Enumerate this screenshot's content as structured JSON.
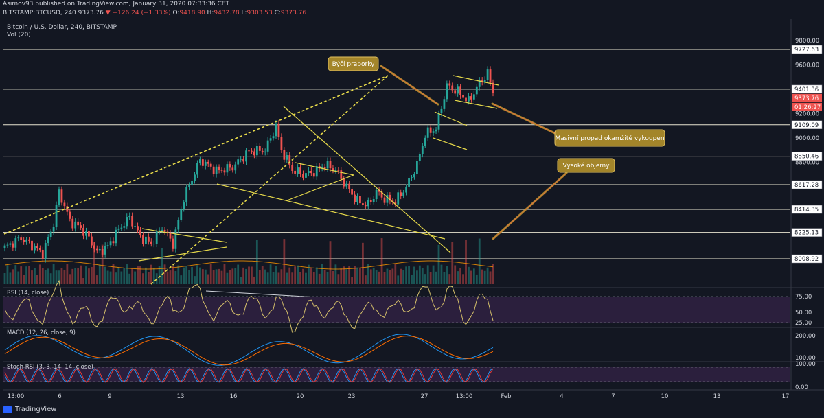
{
  "header": {
    "published": "Asimov93 published on TradingView.com, January 31, 2020 07:33:36 CET",
    "symbol_line": "BITSTAMP:BTCUSD, 240",
    "last_price": "9373.76",
    "change": "−126.24 (−1.33%)",
    "open_label": "O:",
    "open": "9418.90",
    "high_label": "H:",
    "high": "9432.78",
    "low_label": "L:",
    "low": "9303.53",
    "close_label": "C:",
    "close": "9373.76"
  },
  "chart_data": {
    "type": "candlestick",
    "title": "Bitcoin / U.S. Dollar, 240, BITSTAMP",
    "subtitle": "Vol (20)",
    "x_ticks": [
      "13:00",
      "6",
      "9",
      "13",
      "16",
      "20",
      "23",
      "27",
      "13:00",
      "Feb",
      "4",
      "7",
      "10",
      "13",
      "17"
    ],
    "y_ticks": [
      9800,
      9600,
      9200,
      9000,
      8800
    ],
    "ylim": [
      7930,
      9860
    ],
    "horizontal_levels": [
      9727.63,
      9401.36,
      9109.09,
      8850.46,
      8617.28,
      8414.35,
      8225.13,
      8008.92
    ],
    "price_label": "9373.76",
    "countdown_label": "01:26:27",
    "price_anchors": [
      [
        0,
        8100
      ],
      [
        6,
        8180
      ],
      [
        10,
        8120
      ],
      [
        14,
        8050
      ],
      [
        18,
        8300
      ],
      [
        20,
        8560
      ],
      [
        24,
        8320
      ],
      [
        28,
        8260
      ],
      [
        31,
        8180
      ],
      [
        34,
        8060
      ],
      [
        38,
        8110
      ],
      [
        42,
        8250
      ],
      [
        46,
        8350
      ],
      [
        50,
        8190
      ],
      [
        54,
        8130
      ],
      [
        58,
        8270
      ],
      [
        62,
        8130
      ],
      [
        66,
        8510
      ],
      [
        72,
        8820
      ],
      [
        78,
        8730
      ],
      [
        84,
        8760
      ],
      [
        90,
        8890
      ],
      [
        96,
        8900
      ],
      [
        100,
        9100
      ],
      [
        102,
        8900
      ],
      [
        106,
        8740
      ],
      [
        110,
        8700
      ],
      [
        114,
        8720
      ],
      [
        118,
        8780
      ],
      [
        122,
        8740
      ],
      [
        126,
        8600
      ],
      [
        130,
        8480
      ],
      [
        134,
        8450
      ],
      [
        137,
        8560
      ],
      [
        140,
        8500
      ],
      [
        144,
        8480
      ],
      [
        148,
        8600
      ],
      [
        152,
        8780
      ],
      [
        155,
        9030
      ],
      [
        159,
        9080
      ],
      [
        163,
        9430
      ],
      [
        167,
        9380
      ],
      [
        171,
        9300
      ],
      [
        175,
        9450
      ],
      [
        178,
        9530
      ],
      [
        180,
        9380
      ]
    ],
    "annotations": [
      {
        "text": "Býčí praporky"
      },
      {
        "text": "Masivní propad okamžitě vykoupen"
      },
      {
        "text": "Vysoké objemy"
      }
    ],
    "indicators": [
      {
        "name": "RSI (14, close)",
        "y_ticks": [
          75.0,
          50.0,
          25.0
        ],
        "upper": 70,
        "lower": 30
      },
      {
        "name": "MACD (12, 26, close, 9)",
        "y_ticks": [
          200.0,
          100.0
        ]
      },
      {
        "name": "Stoch RSI (3, 3, 14, 14, close)",
        "y_ticks": [
          100.0,
          0.0
        ]
      }
    ]
  },
  "footer": {
    "brand": "TradingView"
  },
  "colors": {
    "background": "#131722",
    "up": "#26a69a",
    "down": "#ef5350",
    "level_line": "#e8e4d0",
    "trend": "#e6d94a",
    "annotation_fill": "#a3852a",
    "osc_band": "#2b1f3d",
    "rsi_line": "#d7c26b",
    "macd_line": "#2196f3",
    "signal_line": "#ff6d00"
  }
}
